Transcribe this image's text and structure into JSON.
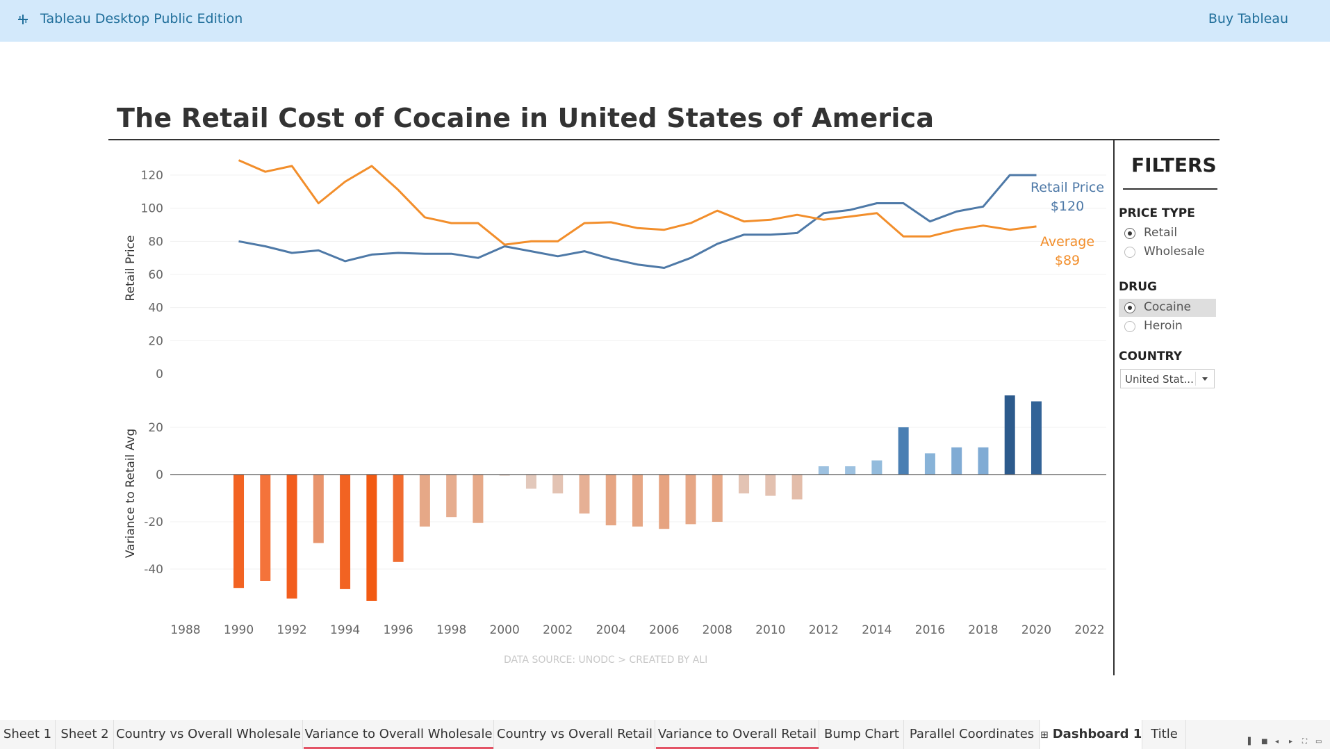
{
  "app": {
    "title": "Tableau Desktop Public Edition",
    "buy_label": "Buy Tableau",
    "logo_icon": "tableau-logo-icon"
  },
  "dashboard": {
    "title": "The Retail Cost of Cocaine in United States of America",
    "data_source": "DATA SOURCE: UNODC > CREATED BY ALI"
  },
  "filters": {
    "title": "FILTERS",
    "price_type": {
      "label": "PRICE TYPE",
      "options": [
        "Retail",
        "Wholesale"
      ],
      "selected": "Retail"
    },
    "drug": {
      "label": "DRUG",
      "options": [
        "Cocaine",
        "Heroin"
      ],
      "selected": "Cocaine"
    },
    "country": {
      "label": "COUNTRY",
      "value": "United Stat..."
    }
  },
  "chart_data": [
    {
      "type": "line",
      "title": "",
      "xlabel": "",
      "ylabel": "Retail Price",
      "ylim": [
        0,
        130
      ],
      "yticks": [
        0,
        20,
        40,
        60,
        80,
        100,
        120
      ],
      "series": [
        {
          "name": "Retail Price",
          "color": "#4e79a7",
          "end_label": "Retail Price",
          "end_value_label": "$120",
          "points": [
            [
              1990,
              80
            ],
            [
              1991,
              77
            ],
            [
              1992,
              73
            ],
            [
              1993,
              74.5
            ],
            [
              1994,
              68
            ],
            [
              1995,
              72
            ],
            [
              1996,
              73
            ],
            [
              1997,
              72.5
            ],
            [
              1998,
              72.5
            ],
            [
              1999,
              70
            ],
            [
              2000,
              77
            ],
            [
              2001,
              74
            ],
            [
              2002,
              71
            ],
            [
              2003,
              74
            ],
            [
              2004,
              69.5
            ],
            [
              2005,
              66
            ],
            [
              2006,
              64
            ],
            [
              2007,
              70
            ],
            [
              2008,
              78.5
            ],
            [
              2009,
              84
            ],
            [
              2010,
              84
            ],
            [
              2011,
              85
            ],
            [
              2012,
              97
            ],
            [
              2013,
              99
            ],
            [
              2014,
              103
            ],
            [
              2015,
              103
            ],
            [
              2016,
              92
            ],
            [
              2017,
              98
            ],
            [
              2018,
              101
            ],
            [
              2019,
              120
            ],
            [
              2020,
              120
            ]
          ]
        },
        {
          "name": "Average",
          "color": "#f28e2b",
          "end_label": "Average",
          "end_value_label": "$89",
          "points": [
            [
              1990,
              129
            ],
            [
              1991,
              122
            ],
            [
              1992,
              125.5
            ],
            [
              1993,
              103
            ],
            [
              1994,
              116
            ],
            [
              1995,
              125.5
            ],
            [
              1996,
              111
            ],
            [
              1997,
              94.5
            ],
            [
              1998,
              91
            ],
            [
              1999,
              91
            ],
            [
              2000,
              78
            ],
            [
              2001,
              80
            ],
            [
              2002,
              80
            ],
            [
              2003,
              91
            ],
            [
              2004,
              91.5
            ],
            [
              2005,
              88
            ],
            [
              2006,
              87
            ],
            [
              2007,
              91
            ],
            [
              2008,
              98.5
            ],
            [
              2009,
              92
            ],
            [
              2010,
              93
            ],
            [
              2011,
              96
            ],
            [
              2012,
              93
            ],
            [
              2013,
              95
            ],
            [
              2014,
              97
            ],
            [
              2015,
              83
            ],
            [
              2016,
              83
            ],
            [
              2017,
              87
            ],
            [
              2018,
              89.5
            ],
            [
              2019,
              87
            ],
            [
              2020,
              89
            ]
          ]
        }
      ]
    },
    {
      "type": "bar",
      "title": "",
      "xlabel": "",
      "ylabel": "Variance to Retail Avg",
      "ylim": [
        -55,
        42
      ],
      "yticks": [
        -40,
        -20,
        0,
        20
      ],
      "xlim": [
        1988,
        2022
      ],
      "xticks": [
        1988,
        1990,
        1992,
        1994,
        1996,
        1998,
        2000,
        2002,
        2004,
        2006,
        2008,
        2010,
        2012,
        2014,
        2016,
        2018,
        2020,
        2022
      ],
      "bars": [
        {
          "x": 1990,
          "value": -48,
          "color": "#f26322"
        },
        {
          "x": 1991,
          "value": -45,
          "color": "#f4733a"
        },
        {
          "x": 1992,
          "value": -52.5,
          "color": "#f25d1d"
        },
        {
          "x": 1993,
          "value": -29,
          "color": "#e8946c"
        },
        {
          "x": 1994,
          "value": -48.5,
          "color": "#f26322"
        },
        {
          "x": 1995,
          "value": -53.5,
          "color": "#f25a12"
        },
        {
          "x": 1996,
          "value": -37,
          "color": "#f06c30"
        },
        {
          "x": 1997,
          "value": -22,
          "color": "#e6a887"
        },
        {
          "x": 1998,
          "value": -18,
          "color": "#e6ad8f"
        },
        {
          "x": 1999,
          "value": -20.5,
          "color": "#e6a988"
        },
        {
          "x": 2000,
          "value": -0.5,
          "color": "#e2cfc6"
        },
        {
          "x": 2001,
          "value": -6,
          "color": "#e2c8bb"
        },
        {
          "x": 2002,
          "value": -8,
          "color": "#e3c3b3"
        },
        {
          "x": 2003,
          "value": -16.5,
          "color": "#e6b095"
        },
        {
          "x": 2004,
          "value": -21.5,
          "color": "#e6a684"
        },
        {
          "x": 2005,
          "value": -22,
          "color": "#e6a684"
        },
        {
          "x": 2006,
          "value": -23,
          "color": "#e6a380"
        },
        {
          "x": 2007,
          "value": -21,
          "color": "#e6a786"
        },
        {
          "x": 2008,
          "value": -20,
          "color": "#e6a988"
        },
        {
          "x": 2009,
          "value": -8,
          "color": "#e3c3b3"
        },
        {
          "x": 2010,
          "value": -9,
          "color": "#e3c1b0"
        },
        {
          "x": 2011,
          "value": -10.5,
          "color": "#e3bdaa"
        },
        {
          "x": 2012,
          "value": 3.5,
          "color": "#9dc1e0"
        },
        {
          "x": 2013,
          "value": 3.5,
          "color": "#9dc1e0"
        },
        {
          "x": 2014,
          "value": 6,
          "color": "#93bbdc"
        },
        {
          "x": 2015,
          "value": 20,
          "color": "#4a7fb3"
        },
        {
          "x": 2016,
          "value": 9,
          "color": "#88b3d8"
        },
        {
          "x": 2017,
          "value": 11.5,
          "color": "#80abd4"
        },
        {
          "x": 2018,
          "value": 11.5,
          "color": "#80abd4"
        },
        {
          "x": 2019,
          "value": 33.5,
          "color": "#2c5a8c"
        },
        {
          "x": 2020,
          "value": 31,
          "color": "#326397"
        }
      ]
    }
  ],
  "tabs": [
    {
      "label": "Sheet 1",
      "underline": false,
      "active": false
    },
    {
      "label": "Sheet 2",
      "underline": false,
      "active": false
    },
    {
      "label": "Country vs Overall Wholesale",
      "underline": false,
      "active": false
    },
    {
      "label": "Variance to Overall Wholesale",
      "underline": true,
      "active": false
    },
    {
      "label": "Country vs Overall Retail",
      "underline": false,
      "active": false
    },
    {
      "label": "Variance to Overall Retail",
      "underline": true,
      "active": false
    },
    {
      "label": "Bump Chart",
      "underline": false,
      "active": false
    },
    {
      "label": "Parallel Coordinates",
      "underline": false,
      "active": false
    },
    {
      "label": "Dashboard 1",
      "underline": false,
      "active": true,
      "icon": "dashboard-grid-icon"
    },
    {
      "label": "Title",
      "underline": false,
      "active": false
    }
  ],
  "nav_icons": [
    "filmstrip-icon",
    "show-sheet-icon",
    "prev-sheet-icon",
    "next-sheet-icon",
    "fullscreen-icon",
    "presentation-icon"
  ]
}
